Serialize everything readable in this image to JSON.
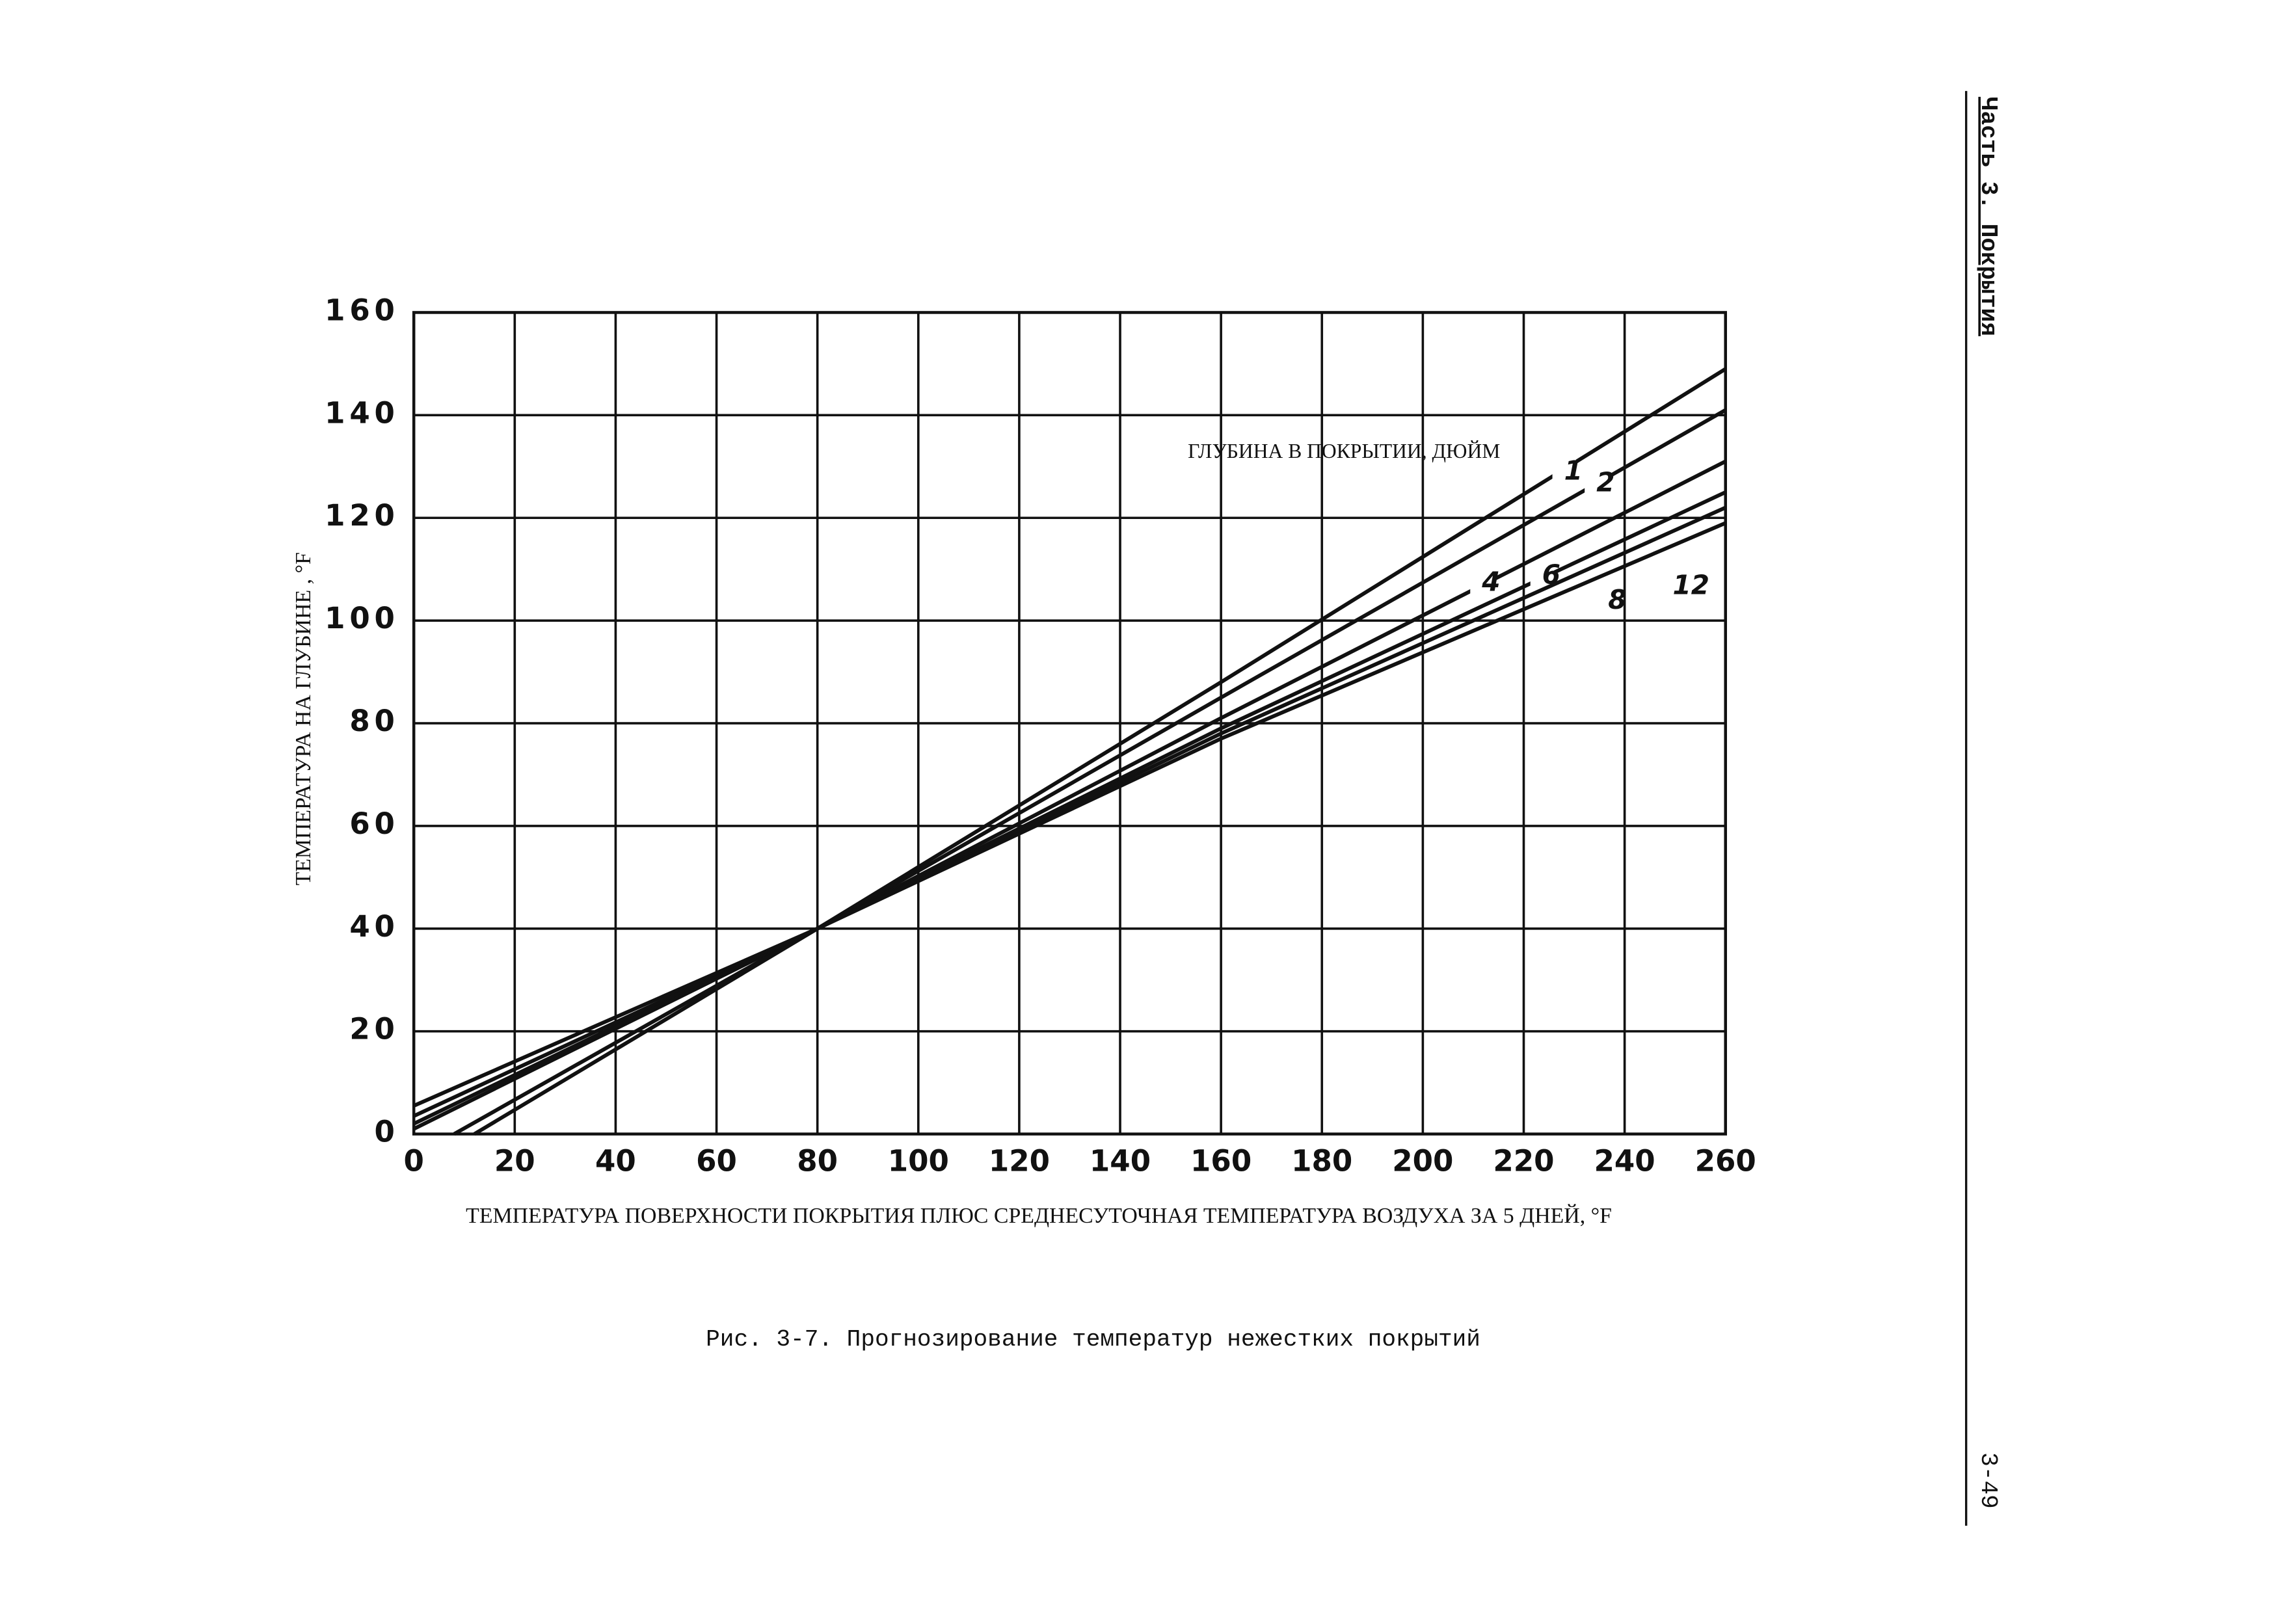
{
  "chart_data": {
    "type": "line",
    "xlabel": "ТЕМПЕРАТУРА ПОВЕРХНОСТИ ПОКРЫТИЯ ПЛЮС СРЕДНЕСУТОЧНАЯ ТЕМПЕРАТУРА ВОЗДУХА ЗА 5 ДНЕЙ, °F",
    "ylabel": "ТЕМПЕРАТУРА НА ГЛУБИНЕ , °F",
    "annotation": "ГЛУБИНА В ПОКРЫТИИ, ДЮЙМ",
    "xlim": [
      0,
      260
    ],
    "ylim": [
      0,
      160
    ],
    "xticks": [
      0,
      20,
      40,
      60,
      80,
      100,
      120,
      140,
      160,
      180,
      200,
      220,
      240,
      260
    ],
    "yticks": [
      0,
      20,
      40,
      60,
      80,
      100,
      120,
      140,
      160
    ],
    "grid": true,
    "color": "#111111",
    "series": [
      {
        "name": "1",
        "x": [
          12,
          80,
          160,
          260
        ],
        "values": [
          0,
          40,
          88,
          149
        ]
      },
      {
        "name": "2",
        "x": [
          8,
          80,
          160,
          260
        ],
        "values": [
          0,
          40,
          85,
          141
        ]
      },
      {
        "name": "4",
        "x": [
          0,
          80,
          160,
          260
        ],
        "values": [
          1,
          40,
          81,
          131
        ]
      },
      {
        "name": "6",
        "x": [
          0,
          80,
          160,
          260
        ],
        "values": [
          2,
          40,
          79,
          125
        ]
      },
      {
        "name": "8",
        "x": [
          0,
          80,
          160,
          260
        ],
        "values": [
          3.5,
          40,
          78,
          122
        ]
      },
      {
        "name": "12",
        "x": [
          0,
          80,
          160,
          260
        ],
        "values": [
          5.5,
          40,
          77,
          119
        ]
      }
    ]
  },
  "caption": "Рис. 3-7.  Прогнозирование температур нежестких покрытий",
  "header": {
    "section": "Часть 3. Покрытия",
    "page": "3-49"
  }
}
